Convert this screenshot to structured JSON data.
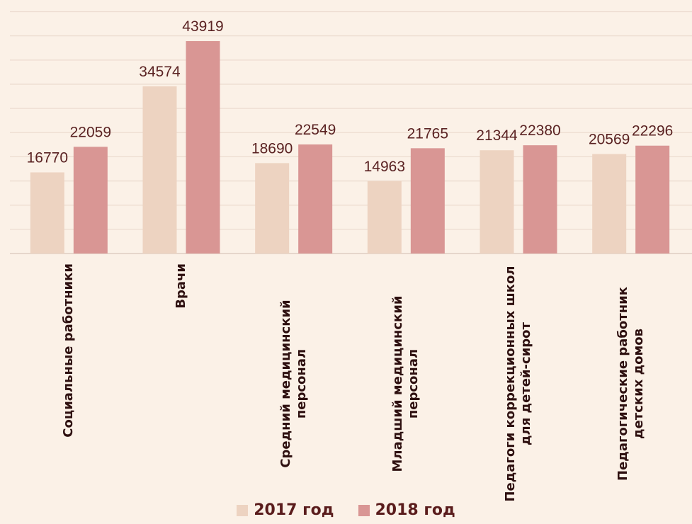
{
  "chart_data": {
    "type": "bar",
    "categories": [
      "Социальные работники",
      "Врачи",
      "Средний медицинский персонал",
      "Младший медицинский персонал",
      "Педагоги коррекционных школ для детей-сирот",
      "Педагогические работник детских домов"
    ],
    "series": [
      {
        "name": "2017 год",
        "color": "#edd3c1",
        "values": [
          16770,
          34574,
          18690,
          14963,
          21344,
          20569
        ]
      },
      {
        "name": "2018 год",
        "color": "#d99694",
        "values": [
          22059,
          43919,
          22549,
          21765,
          22380,
          22296
        ]
      }
    ],
    "ylim": [
      0,
      50000
    ],
    "yticks": [
      0,
      5000,
      10000,
      15000,
      20000,
      25000,
      30000,
      35000,
      40000,
      45000,
      50000
    ],
    "grid": true,
    "legend": "bottom"
  }
}
